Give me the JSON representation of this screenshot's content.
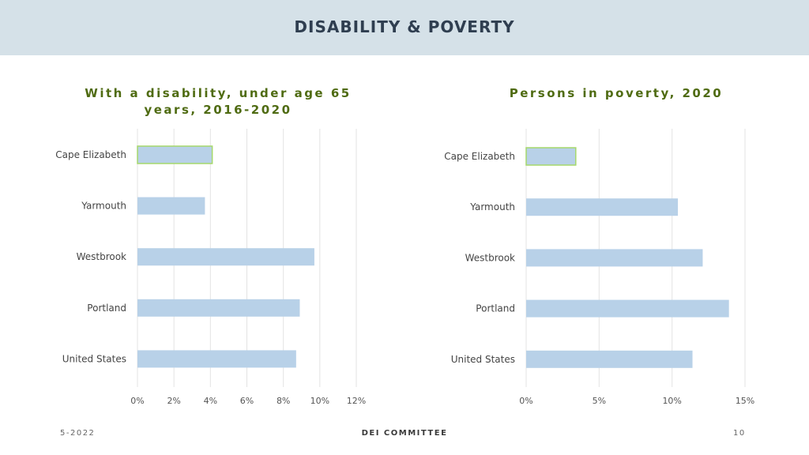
{
  "header": {
    "title": "DISABILITY & POVERTY"
  },
  "chart_data": [
    {
      "type": "bar",
      "orientation": "horizontal",
      "title": "With a disability, under age 65 years, 2016-2020",
      "title_lines": [
        "With a disability, under age 65",
        "years, 2016-2020"
      ],
      "categories": [
        "Cape Elizabeth",
        "Yarmouth",
        "Westbrook",
        "Portland",
        "United States"
      ],
      "values": [
        4.1,
        3.7,
        9.7,
        8.9,
        8.7
      ],
      "xlim": [
        0,
        12
      ],
      "ticks": [
        0,
        2,
        4,
        6,
        8,
        10,
        12
      ],
      "tick_labels": [
        "0%",
        "2%",
        "4%",
        "6%",
        "8%",
        "10%",
        "12%"
      ],
      "grid": true,
      "bar_color": "#b8d1e8",
      "highlight_index": 0,
      "highlight_color": "#a6d86b"
    },
    {
      "type": "bar",
      "orientation": "horizontal",
      "title": "Persons in poverty, 2020",
      "title_lines": [
        "Persons in poverty, 2020"
      ],
      "categories": [
        "Cape Elizabeth",
        "Yarmouth",
        "Westbrook",
        "Portland",
        "United States"
      ],
      "values": [
        3.4,
        10.4,
        12.1,
        13.9,
        11.4
      ],
      "xlim": [
        0,
        15
      ],
      "ticks": [
        0,
        5,
        10,
        15
      ],
      "tick_labels": [
        "0%",
        "5%",
        "10%",
        "15%"
      ],
      "grid": true,
      "bar_color": "#b8d1e8",
      "highlight_index": 0,
      "highlight_color": "#a6d86b"
    }
  ],
  "footer": {
    "date": "5-2022",
    "center": "DEI COMMITTEE",
    "page": "10"
  }
}
